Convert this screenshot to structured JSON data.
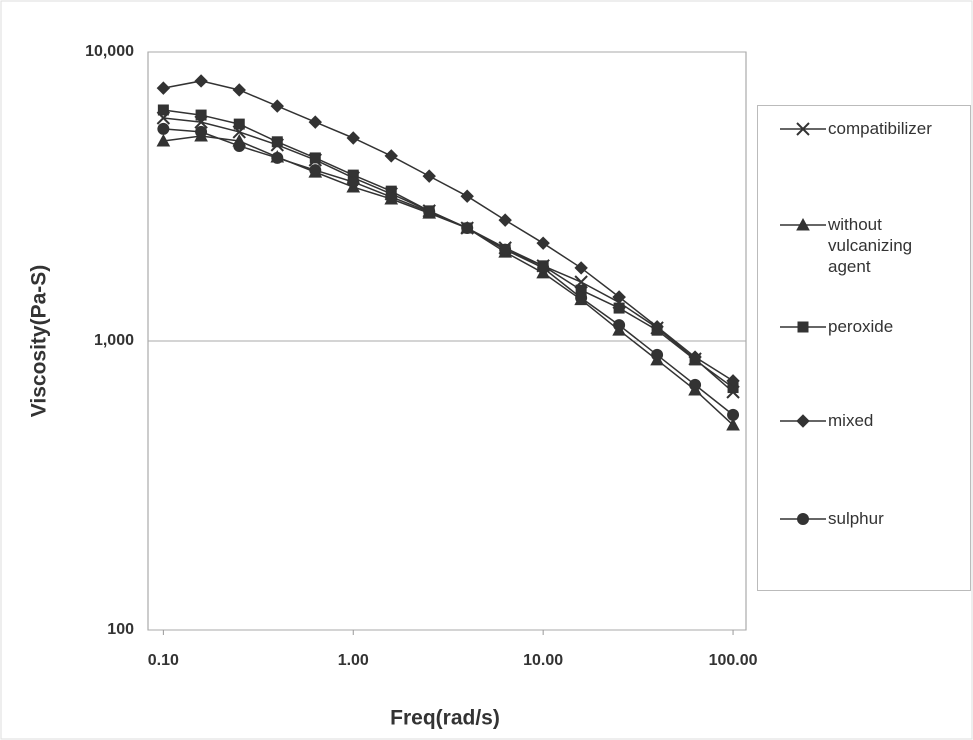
{
  "chart_data": {
    "type": "line",
    "x_label": "Freq(rad/s)",
    "y_label": "Viscosity(Pa-S)",
    "x": [
      0.1,
      0.158,
      0.251,
      0.398,
      0.631,
      1,
      1.585,
      2.512,
      3.981,
      6.31,
      10,
      15.85,
      25.12,
      39.81,
      63.1,
      100
    ],
    "xscale": "log",
    "yscale": "log",
    "xlim": [
      0.083,
      117
    ],
    "ylim": [
      100,
      10000
    ],
    "xticks": [
      {
        "value": 0.1,
        "label": "0.10"
      },
      {
        "value": 1,
        "label": "1.00"
      },
      {
        "value": 10,
        "label": "10.00"
      },
      {
        "value": 100,
        "label": "100.00"
      }
    ],
    "yticks": [
      {
        "value": 10000,
        "label": "10,000"
      },
      {
        "value": 1000,
        "label": "1,000"
      },
      100
    ],
    "grid": true,
    "legend": "right",
    "series": [
      {
        "name": "compatibilizer",
        "color": "#333333",
        "marker": "x",
        "values": [
          5910,
          5720,
          5290,
          4770,
          4230,
          3670,
          3230,
          2820,
          2460,
          2100,
          1820,
          1600,
          1360,
          1110,
          867,
          666
        ]
      },
      {
        "name": "without vulcanizing agent",
        "color": "#333333",
        "marker": "triangle",
        "values": [
          4920,
          5120,
          4920,
          4330,
          3840,
          3410,
          3100,
          2770,
          2460,
          2030,
          1720,
          1390,
          1090,
          860,
          677,
          512
        ]
      },
      {
        "name": "peroxide",
        "color": "#333333",
        "marker": "square",
        "values": [
          6300,
          6050,
          5630,
          4890,
          4300,
          3750,
          3300,
          2820,
          2460,
          2070,
          1820,
          1500,
          1300,
          1090,
          860,
          690
        ]
      },
      {
        "name": "mixed",
        "color": "#333333",
        "marker": "diamond",
        "values": [
          7500,
          7940,
          7390,
          6500,
          5720,
          5040,
          4370,
          3720,
          3170,
          2620,
          2180,
          1790,
          1420,
          1120,
          880,
          728
        ]
      },
      {
        "name": "sulphur",
        "color": "#333333",
        "marker": "circle",
        "values": [
          5420,
          5290,
          4730,
          4300,
          3900,
          3550,
          3150,
          2800,
          2460,
          2070,
          1790,
          1410,
          1135,
          895,
          705,
          555
        ]
      }
    ]
  }
}
